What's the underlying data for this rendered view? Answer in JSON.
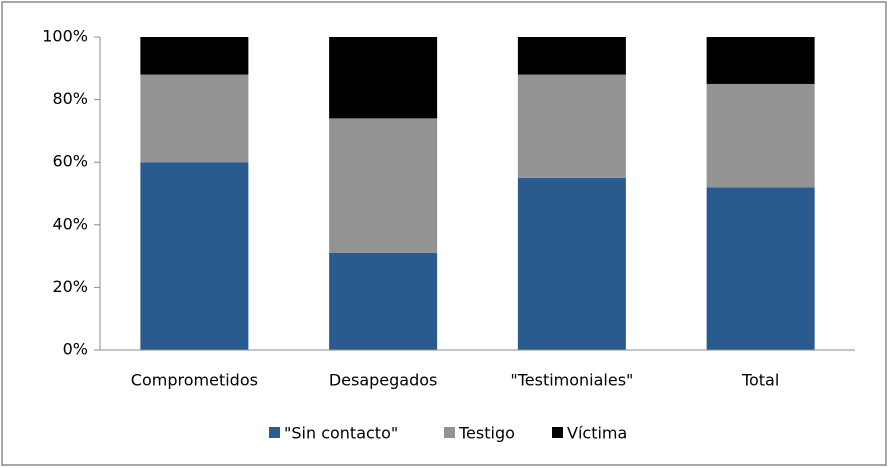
{
  "chart_data": {
    "type": "stacked_bar",
    "categories": [
      "Comprometidos",
      "Desapegados",
      "\"Testimoniales\"",
      "Total"
    ],
    "series": [
      {
        "name": "\"Sin contacto\"",
        "color": "#2a5b8f",
        "values": [
          60,
          31,
          55,
          52
        ]
      },
      {
        "name": "Testigo",
        "color": "#939393",
        "values": [
          28,
          43,
          33,
          33
        ]
      },
      {
        "name": "Víctima",
        "color": "#000000",
        "values": [
          12,
          26,
          12,
          15
        ]
      }
    ],
    "ylim": [
      0,
      100
    ],
    "yticks": [
      {
        "value": 0,
        "label": "0%"
      },
      {
        "value": 20,
        "label": "20%"
      },
      {
        "value": 40,
        "label": "40%"
      },
      {
        "value": 60,
        "label": "60%"
      },
      {
        "value": 80,
        "label": "80%"
      },
      {
        "value": 100,
        "label": "100%"
      }
    ],
    "legend": "bottom"
  }
}
